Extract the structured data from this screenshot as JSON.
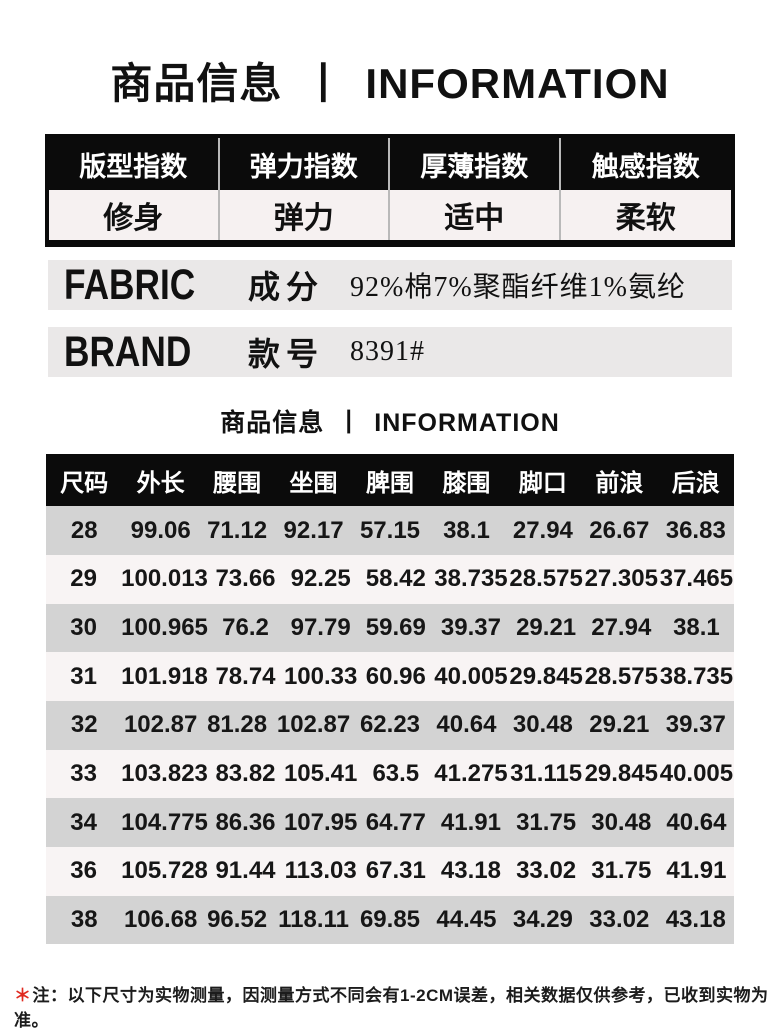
{
  "page": {
    "title_zh": "商品信息",
    "title_sep": "丨",
    "title_en": "INFORMATION"
  },
  "index_table": {
    "items": [
      {
        "label": "版型指数",
        "value": "修身"
      },
      {
        "label": "弹力指数",
        "value": "弹力"
      },
      {
        "label": "厚薄指数",
        "value": "适中"
      },
      {
        "label": "触感指数",
        "value": "柔软"
      }
    ]
  },
  "attributes": [
    {
      "tag": "FABRIC",
      "label": "成分",
      "value": "92%棉7%聚酯纤维1%氨纶"
    },
    {
      "tag": "BRAND",
      "label": "款号",
      "value": "8391#"
    }
  ],
  "section": {
    "title_zh": "商品信息",
    "title_sep": "丨",
    "title_en": "INFORMATION"
  },
  "size_chart": {
    "columns": [
      "尺码",
      "外长",
      "腰围",
      "坐围",
      "脾围",
      "膝围",
      "脚口",
      "前浪",
      "后浪"
    ],
    "rows": [
      [
        "28",
        "99.06",
        "71.12",
        "92.17",
        "57.15",
        "38.1",
        "27.94",
        "26.67",
        "36.83"
      ],
      [
        "29",
        "100.013",
        "73.66",
        "92.25",
        "58.42",
        "38.735",
        "28.575",
        "27.305",
        "37.465"
      ],
      [
        "30",
        "100.965",
        "76.2",
        "97.79",
        "59.69",
        "39.37",
        "29.21",
        "27.94",
        "38.1"
      ],
      [
        "31",
        "101.918",
        "78.74",
        "100.33",
        "60.96",
        "40.005",
        "29.845",
        "28.575",
        "38.735"
      ],
      [
        "32",
        "102.87",
        "81.28",
        "102.87",
        "62.23",
        "40.64",
        "30.48",
        "29.21",
        "39.37"
      ],
      [
        "33",
        "103.823",
        "83.82",
        "105.41",
        "63.5",
        "41.275",
        "31.115",
        "29.845",
        "40.005"
      ],
      [
        "34",
        "104.775",
        "86.36",
        "107.95",
        "64.77",
        "41.91",
        "31.75",
        "30.48",
        "40.64"
      ],
      [
        "36",
        "105.728",
        "91.44",
        "113.03",
        "67.31",
        "43.18",
        "33.02",
        "31.75",
        "41.91"
      ],
      [
        "38",
        "106.68",
        "96.52",
        "118.11",
        "69.85",
        "44.45",
        "34.29",
        "33.02",
        "43.18"
      ]
    ]
  },
  "footnote": {
    "star": "＊",
    "prefix": "注：",
    "text": "以下尺寸为实物测量，因测量方式不同会有1-2CM误差，相关数据仅供参考，已收到实物为准。"
  },
  "colors": {
    "header_bg": "#0b0b0b",
    "row_gray": "#d3d3d3",
    "row_light": "#f8f4f4",
    "band_gray": "#eae8e8",
    "note_star": "#e02a20"
  }
}
